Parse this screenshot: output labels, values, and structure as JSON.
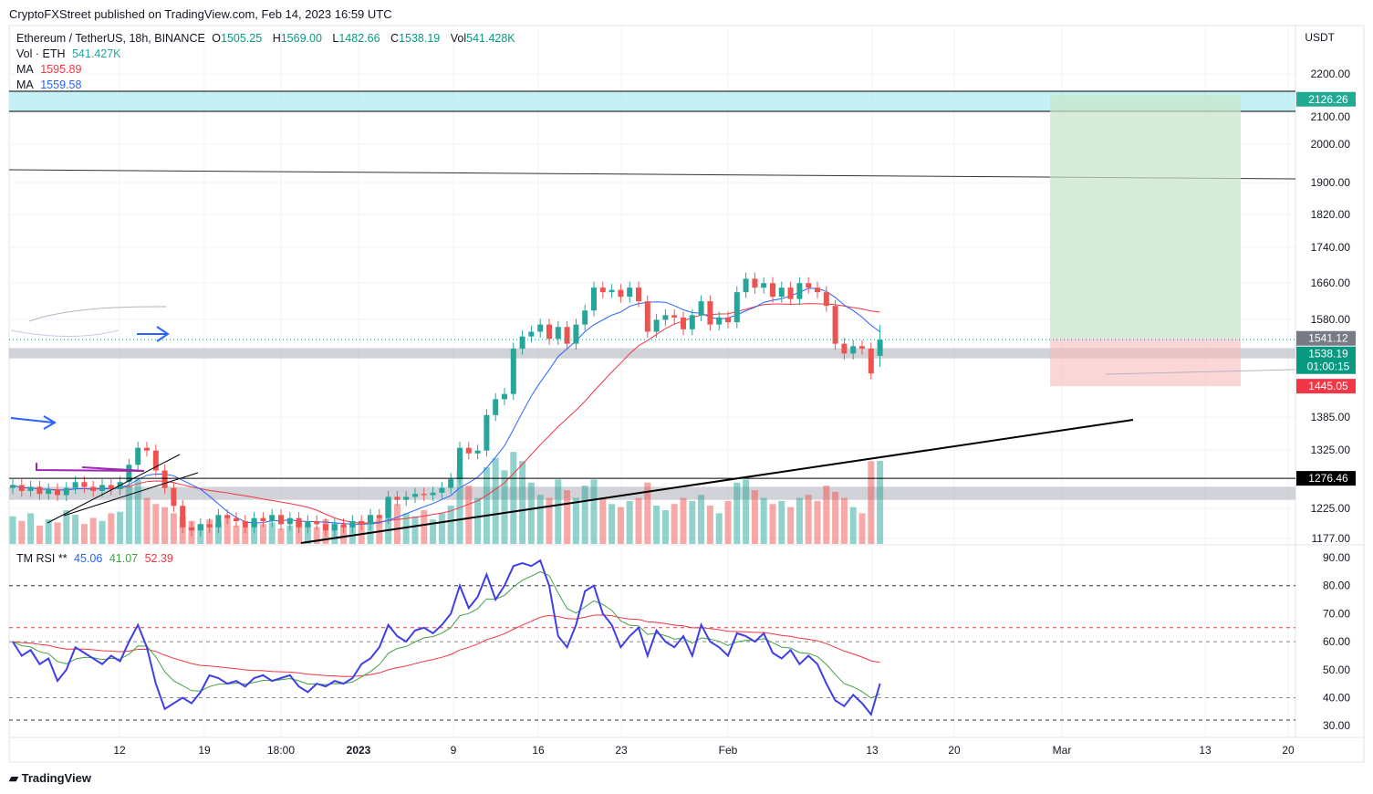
{
  "header": {
    "published": "CryptoFXStreet published on TradingView.com, Feb 14, 2023 16:59 UTC"
  },
  "legend": {
    "symbol": "Ethereum / TetherUS, 18h, BINANCE",
    "o_label": "O",
    "o": "1505.25",
    "h_label": "H",
    "h": "1569.00",
    "l_label": "L",
    "l": "1482.66",
    "c_label": "C",
    "c": "1538.19",
    "vol_label": "Vol",
    "vol": "541.428K",
    "vol_eth_label": "Vol · ETH",
    "vol_eth": "541.427K",
    "ma1_label": "MA",
    "ma1": "1595.89",
    "ma2_label": "MA",
    "ma2": "1559.58",
    "rsi_label": "TM RSI **",
    "rsi1": "45.06",
    "rsi2": "41.07",
    "rsi3": "52.39"
  },
  "footer": {
    "brand": "TradingView"
  },
  "colors": {
    "up": "#26a69a",
    "down": "#ef5350",
    "ma_fast": "#2962ff",
    "ma_slow": "#f23645",
    "rsi": "#3f3fe6",
    "rsi_signal": "#43a047",
    "rsi_slow": "#f23645"
  },
  "chart_data": {
    "type": "candlestick",
    "currency": "USDT",
    "y_scale": "log",
    "ylim": [
      1177,
      2250
    ],
    "y_ticks": [
      "2200.00",
      "2100.00",
      "2000.00",
      "1900.00",
      "1820.00",
      "1740.00",
      "1660.00",
      "1580.00",
      "1385.00",
      "1325.00",
      "1225.00",
      "1177.00"
    ],
    "x_ticks": [
      "12",
      "19",
      "18:00",
      "2023",
      "9",
      "16",
      "23",
      "Feb",
      "13",
      "20",
      "Mar",
      "13",
      "20"
    ],
    "closes": [
      1265,
      1255,
      1262,
      1250,
      1258,
      1248,
      1260,
      1270,
      1262,
      1255,
      1265,
      1258,
      1270,
      1300,
      1330,
      1325,
      1290,
      1260,
      1230,
      1195,
      1190,
      1200,
      1195,
      1215,
      1210,
      1205,
      1195,
      1210,
      1205,
      1215,
      1200,
      1210,
      1195,
      1205,
      1200,
      1190,
      1200,
      1195,
      1205,
      1200,
      1215,
      1210,
      1245,
      1240,
      1245,
      1250,
      1248,
      1252,
      1260,
      1275,
      1330,
      1320,
      1325,
      1390,
      1420,
      1430,
      1520,
      1545,
      1555,
      1570,
      1540,
      1565,
      1530,
      1570,
      1600,
      1650,
      1640,
      1645,
      1630,
      1650,
      1620,
      1555,
      1580,
      1590,
      1585,
      1560,
      1590,
      1620,
      1570,
      1585,
      1575,
      1640,
      1670,
      1650,
      1660,
      1630,
      1650,
      1625,
      1660,
      1650,
      1640,
      1610,
      1530,
      1510,
      1525,
      1520,
      1470,
      1538.19
    ],
    "last_open": 1505.25,
    "last_high": 1569.0,
    "last_low": 1482.66,
    "volumes_k": [
      180,
      150,
      200,
      120,
      160,
      140,
      220,
      190,
      130,
      170,
      150,
      200,
      210,
      380,
      420,
      300,
      260,
      240,
      200,
      180,
      150,
      130,
      160,
      140,
      170,
      120,
      110,
      150,
      130,
      140,
      100,
      120,
      150,
      130,
      110,
      160,
      140,
      120,
      130,
      150,
      140,
      170,
      300,
      260,
      200,
      180,
      220,
      160,
      200,
      250,
      480,
      380,
      300,
      500,
      560,
      480,
      600,
      540,
      400,
      320,
      300,
      420,
      350,
      300,
      380,
      420,
      300,
      260,
      240,
      280,
      300,
      400,
      250,
      220,
      260,
      300,
      280,
      320,
      250,
      200,
      280,
      400,
      420,
      350,
      300,
      260,
      280,
      240,
      300,
      320,
      280,
      380,
      340,
      300,
      240,
      200,
      540,
      541.427
    ],
    "rsi": [
      60,
      55,
      57,
      52,
      54,
      46,
      50,
      58,
      56,
      54,
      52,
      55,
      53,
      60,
      66,
      58,
      45,
      36,
      38,
      40,
      38,
      42,
      48,
      47,
      45,
      46,
      44,
      47,
      48,
      46,
      47,
      48,
      44,
      42,
      45,
      44,
      46,
      45,
      47,
      52,
      54,
      58,
      66,
      62,
      60,
      64,
      65,
      63,
      66,
      70,
      80,
      72,
      76,
      84,
      75,
      80,
      87,
      88,
      87,
      89,
      80,
      62,
      58,
      66,
      78,
      80,
      70,
      66,
      58,
      62,
      65,
      55,
      64,
      60,
      58,
      62,
      55,
      66,
      60,
      58,
      55,
      63,
      62,
      60,
      63,
      56,
      54,
      57,
      52,
      55,
      52,
      45,
      39,
      37,
      41,
      38,
      34,
      45.06
    ],
    "rsi_ticks": [
      "90.00",
      "80.00",
      "70.00",
      "60.00",
      "50.00",
      "40.00",
      "30.00"
    ],
    "rsi_levels": [
      80,
      65,
      60,
      40,
      32
    ],
    "price_labels": [
      {
        "text": "2126.26",
        "price": 2126.26,
        "color": "#22ab94"
      },
      {
        "text": "1541.12",
        "price": 1541.12,
        "color": "#787b86"
      },
      {
        "text": "1538.19",
        "sub": "01:00:15",
        "price": 1538.19,
        "color": "#089981"
      },
      {
        "text": "1445.05",
        "price": 1445.05,
        "color": "#f23645"
      },
      {
        "text": "1276.46",
        "price": 1276.46,
        "color": "#000000"
      }
    ],
    "zones": {
      "resistance": [
        2102,
        2160
      ],
      "support_mid": [
        1500,
        1521
      ],
      "support_low": [
        1240,
        1262
      ],
      "take_profit": 2140,
      "entry": 1541.12,
      "stop": 1445.05
    }
  }
}
